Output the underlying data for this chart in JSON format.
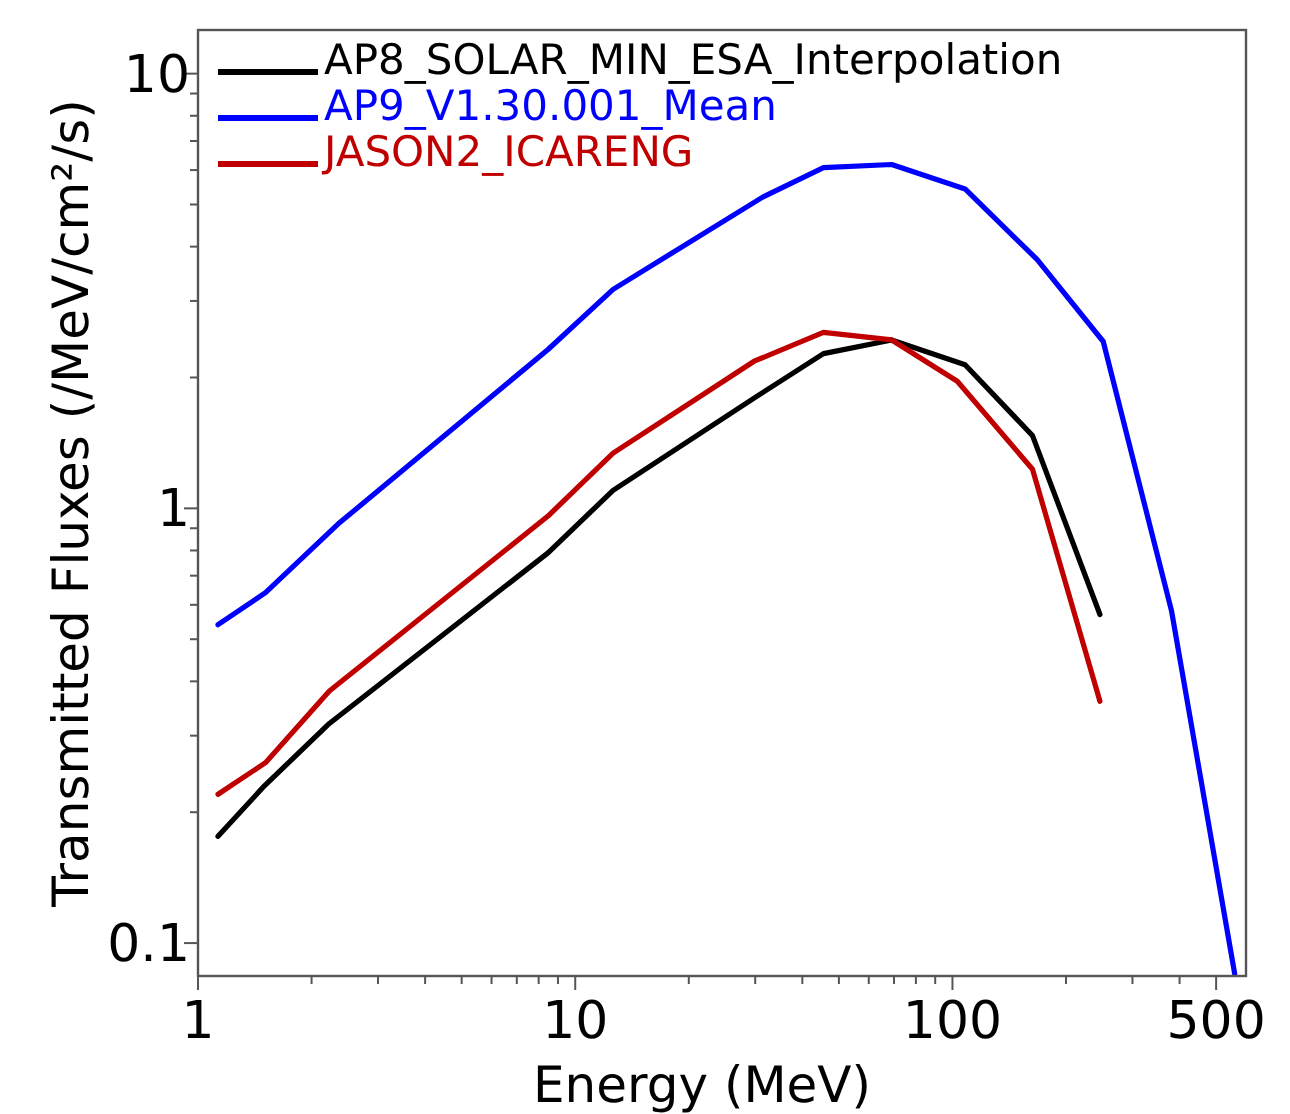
{
  "chart_data": {
    "type": "line",
    "xlabel": "Energy (MeV)",
    "ylabel": "Transmitted Fluxes (/MeV/cm²/s)",
    "log": "xy",
    "legend": "top left",
    "line_style": "solid",
    "xlim": [
      1,
      600
    ],
    "ylim": [
      0.084,
      12.6
    ],
    "xticks": [
      1,
      {
        "value": 2,
        "label": null
      },
      {
        "value": 3,
        "label": null
      },
      {
        "value": 4,
        "label": null
      },
      {
        "value": 5,
        "label": null
      },
      {
        "value": 6,
        "label": null
      },
      {
        "value": 7,
        "label": null
      },
      {
        "value": 8,
        "label": null
      },
      {
        "value": 9,
        "label": null
      },
      10,
      {
        "value": 20,
        "label": null
      },
      {
        "value": 30,
        "label": null
      },
      {
        "value": 40,
        "label": null
      },
      {
        "value": 50,
        "label": null
      },
      {
        "value": 60,
        "label": null
      },
      {
        "value": 70,
        "label": null
      },
      {
        "value": 80,
        "label": null
      },
      {
        "value": 90,
        "label": null
      },
      100,
      {
        "value": 200,
        "label": null
      },
      {
        "value": 300,
        "label": null
      },
      {
        "value": 400,
        "label": null
      },
      500
    ],
    "yticks": [
      0.1,
      {
        "value": 0.2,
        "label": null
      },
      {
        "value": 0.3,
        "label": null
      },
      {
        "value": 0.4,
        "label": null
      },
      {
        "value": 0.5,
        "label": null
      },
      {
        "value": 0.6,
        "label": null
      },
      {
        "value": 0.7,
        "label": null
      },
      {
        "value": 0.8,
        "label": null
      },
      {
        "value": 0.9,
        "label": null
      },
      1,
      {
        "value": 2,
        "label": null
      },
      {
        "value": 3,
        "label": null
      },
      {
        "value": 4,
        "label": null
      },
      {
        "value": 5,
        "label": null
      },
      {
        "value": 6,
        "label": null
      },
      {
        "value": 7,
        "label": null
      },
      {
        "value": 8,
        "label": null
      },
      {
        "value": 9,
        "label": null
      },
      10
    ],
    "series": [
      {
        "name": "AP8_SOLAR_MIN_ESA_Interpolation",
        "color": "#000000",
        "x": [
          1.13,
          1.5,
          2.23,
          8.47,
          12.6,
          30,
          45.5,
          69,
          108,
          163,
          246
        ],
        "values": [
          0.176,
          0.23,
          0.32,
          0.79,
          1.1,
          1.8,
          2.27,
          2.44,
          2.14,
          1.47,
          0.57
        ]
      },
      {
        "name": "AP9_V1.30.001_Mean",
        "color": "#0000ff",
        "x": [
          1.13,
          1.51,
          2.35,
          8.47,
          12.6,
          31.4,
          45.5,
          69,
          108,
          168,
          251,
          381,
          560
        ],
        "values": [
          0.54,
          0.64,
          0.92,
          2.32,
          3.19,
          5.2,
          6.08,
          6.18,
          5.43,
          3.73,
          2.42,
          0.58,
          0.085
        ]
      },
      {
        "name": "JASON2_ICARENG",
        "color": "#c00000",
        "x": [
          1.13,
          1.51,
          2.23,
          8.47,
          12.6,
          29.8,
          45.5,
          69,
          103,
          163,
          246
        ],
        "values": [
          0.22,
          0.26,
          0.38,
          0.96,
          1.34,
          2.18,
          2.54,
          2.44,
          1.96,
          1.23,
          0.36
        ]
      }
    ]
  }
}
